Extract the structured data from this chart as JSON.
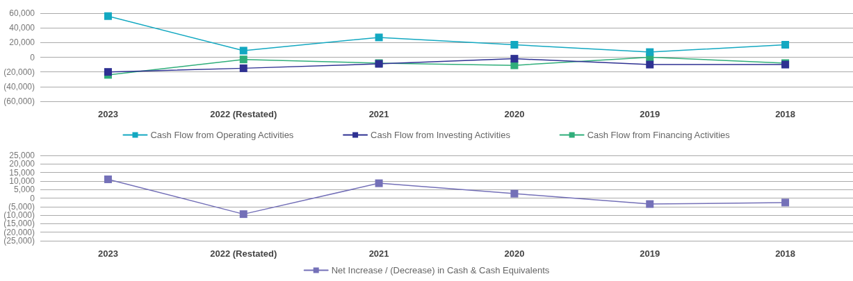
{
  "chart_data": [
    {
      "type": "line",
      "categories": [
        "2023",
        "2022 (Restated)",
        "2021",
        "2020",
        "2019",
        "2018"
      ],
      "series": [
        {
          "name": "Cash Flow from Operating Activities",
          "color": "#13a8c1",
          "values": [
            56000,
            9000,
            27000,
            17000,
            7000,
            17000
          ]
        },
        {
          "name": "Cash Flow from Investing Activities",
          "color": "#2e3192",
          "values": [
            -20000,
            -15000,
            -9000,
            -2000,
            -10000,
            -10000
          ]
        },
        {
          "name": "Cash Flow from Financing Activities",
          "color": "#2fae7a",
          "values": [
            -24000,
            -3000,
            -8000,
            -11000,
            0,
            -8000
          ]
        }
      ],
      "ylim": [
        -60000,
        60000
      ],
      "yticks": [
        {
          "value": -60000,
          "label": "(60,000)"
        },
        {
          "value": -40000,
          "label": "(40,000)"
        },
        {
          "value": -20000,
          "label": "(20,000)"
        },
        0,
        {
          "value": 20000,
          "label": "20,000"
        },
        {
          "value": 40000,
          "label": "40,000"
        },
        {
          "value": 60000,
          "label": "60,000"
        }
      ],
      "grid": "y",
      "legend": "bottom",
      "marker": "square",
      "line_style": "solid"
    },
    {
      "type": "line",
      "categories": [
        "2023",
        "2022 (Restated)",
        "2021",
        "2020",
        "2019",
        "2018"
      ],
      "series": [
        {
          "name": "Net Increase / (Decrease) in Cash & Cash Equivalents",
          "color": "#7470b8",
          "values": [
            11000,
            -9400,
            8700,
            2600,
            -3500,
            -2600
          ]
        }
      ],
      "ylim": [
        -25000,
        25000
      ],
      "yticks": [
        {
          "value": -25000,
          "label": "(25,000)"
        },
        {
          "value": -20000,
          "label": "(20,000)"
        },
        {
          "value": -15000,
          "label": "(15,000)"
        },
        {
          "value": -10000,
          "label": "(10,000)"
        },
        {
          "value": -5000,
          "label": "(5,000)"
        },
        0,
        {
          "value": 5000,
          "label": "5,000"
        },
        {
          "value": 10000,
          "label": "10,000"
        },
        {
          "value": 15000,
          "label": "15,000"
        },
        {
          "value": 20000,
          "label": "20,000"
        },
        {
          "value": 25000,
          "label": "25,000"
        }
      ],
      "grid": "y",
      "legend": "bottom",
      "marker": "square",
      "line_style": "solid"
    }
  ]
}
